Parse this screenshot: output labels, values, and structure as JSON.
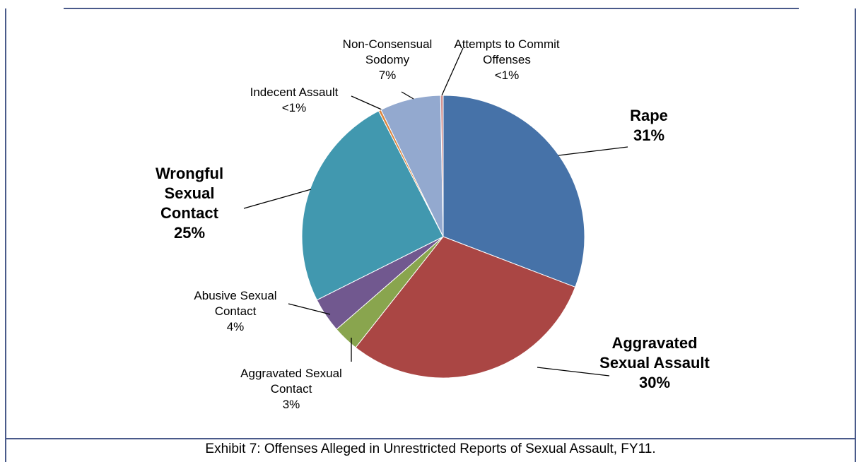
{
  "chart_data": {
    "type": "pie",
    "caption": "Exhibit 7:  Offenses Alleged in Unrestricted Reports of Sexual Assault, FY11.",
    "categories": [
      "Rape",
      "Aggravated Sexual Assault",
      "Aggravated Sexual Contact",
      "Abusive Sexual Contact",
      "Wrongful Sexual Contact",
      "Indecent Assault",
      "Non-Consensual Sodomy",
      "Attempts to Commit Offenses"
    ],
    "values": [
      31,
      30,
      3,
      4,
      25,
      0.3,
      7,
      0.3
    ],
    "value_labels": [
      "31%",
      "30%",
      "3%",
      "4%",
      "25%",
      "<1%",
      "7%",
      "<1%"
    ],
    "colors": [
      "#4672a8",
      "#aa4644",
      "#89a54e",
      "#71588f",
      "#4198af",
      "#db843d",
      "#93a9cf",
      "#d19392"
    ]
  }
}
